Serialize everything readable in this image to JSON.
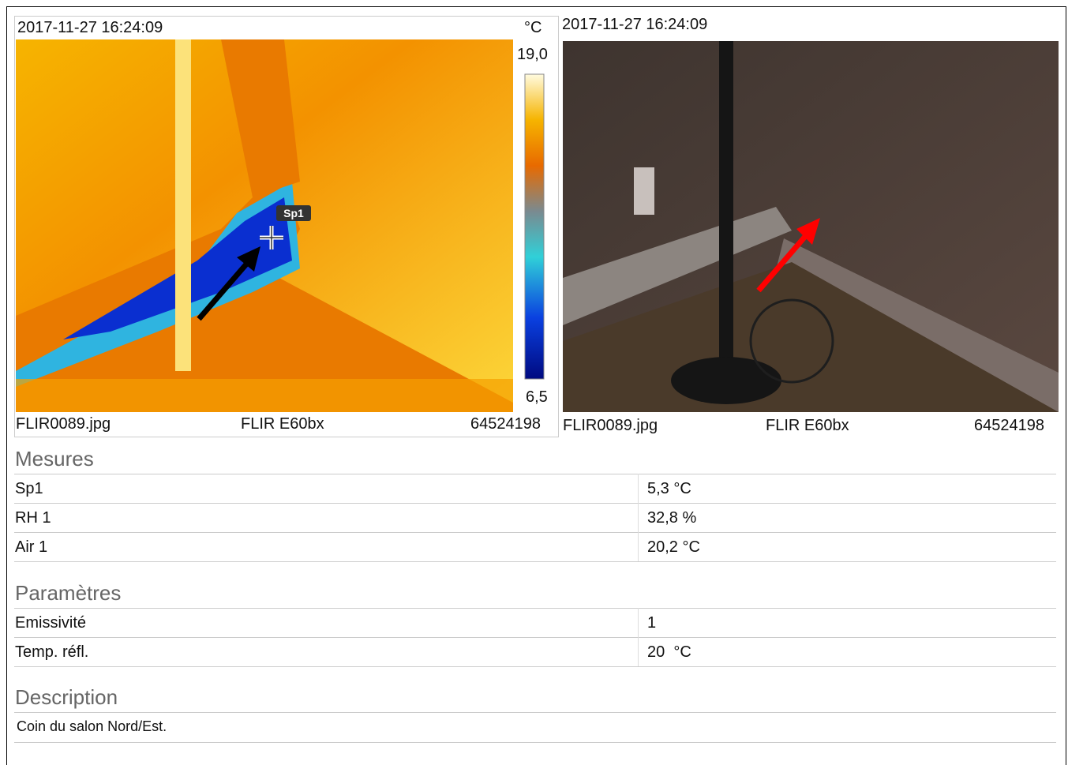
{
  "thermal": {
    "timestamp": "2017-11-27 16:24:09",
    "unit": "°C",
    "scale_max": "19,0",
    "scale_min": "6,5",
    "spot_label": "Sp1",
    "filename": "FLIR0089.jpg",
    "camera": "FLIR E60bx",
    "serial": "64524198"
  },
  "photo": {
    "timestamp": "2017-11-27 16:24:09",
    "filename": "FLIR0089.jpg",
    "camera": "FLIR E60bx",
    "serial": "64524198"
  },
  "sections": [
    {
      "title": "Mesures",
      "rows": [
        [
          "Sp1",
          "5,3 °C"
        ],
        [
          "RH 1",
          "32,8 %"
        ],
        [
          "Air 1",
          "20,2 °C"
        ]
      ]
    },
    {
      "title": "Paramètres",
      "rows": [
        [
          "Emissivité",
          "1"
        ],
        [
          "Temp. réfl.",
          "20  °C"
        ]
      ]
    },
    {
      "title": "Description",
      "text": "Coin du salon Nord/Est."
    }
  ]
}
